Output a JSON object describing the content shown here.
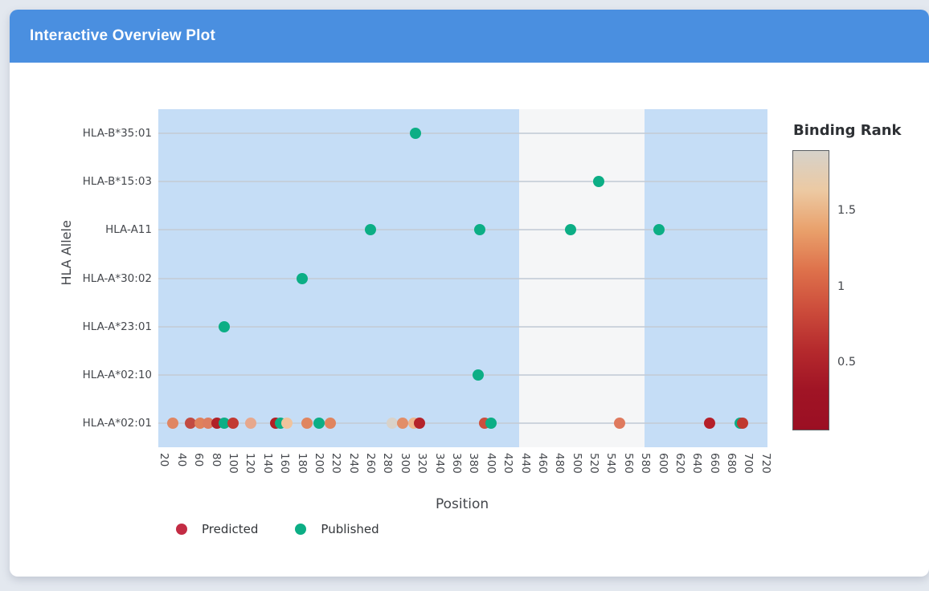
{
  "header": {
    "title": "Interactive Overview Plot",
    "background": "#4a8fe0"
  },
  "chart_data": {
    "type": "scatter",
    "xlabel": "Position",
    "ylabel": "HLA Allele",
    "x_range": [
      13,
      722
    ],
    "x_ticks": [
      20,
      40,
      60,
      80,
      100,
      120,
      140,
      160,
      180,
      200,
      220,
      240,
      260,
      280,
      300,
      320,
      340,
      360,
      380,
      400,
      420,
      440,
      460,
      480,
      500,
      520,
      540,
      560,
      580,
      600,
      620,
      640,
      660,
      680,
      700,
      720
    ],
    "y_categories": [
      "HLA-B*35:01",
      "HLA-B*15:03",
      "HLA-A11",
      "HLA-A*30:02",
      "HLA-A*23:01",
      "HLA-A*02:10",
      "HLA-A*02:01"
    ],
    "grid_color": "#c3ccd6",
    "bands": [
      {
        "x0": 13,
        "x1": 433,
        "color": "#c5ddf6"
      },
      {
        "x0": 433,
        "x1": 579,
        "color": "#f5f6f7"
      },
      {
        "x0": 579,
        "x1": 722,
        "color": "#c5ddf6"
      }
    ],
    "series": [
      {
        "name": "Predicted",
        "legend_color": "#c32c44",
        "points": [
          {
            "allele": "HLA-A*02:01",
            "position": 30,
            "binding_rank": 1.1,
            "color": "#e08663"
          },
          {
            "allele": "HLA-A*02:01",
            "position": 50,
            "binding_rank": 0.65,
            "color": "#c24b42"
          },
          {
            "allele": "HLA-A*02:01",
            "position": 62,
            "binding_rank": 1.1,
            "color": "#e0815c"
          },
          {
            "allele": "HLA-A*02:01",
            "position": 71,
            "binding_rank": 1.05,
            "color": "#dd7d60"
          },
          {
            "allele": "HLA-A*02:01",
            "position": 81,
            "binding_rank": 0.4,
            "color": "#b02127"
          },
          {
            "allele": "HLA-A*02:01",
            "position": 100,
            "binding_rank": 0.6,
            "color": "#c23a33"
          },
          {
            "allele": "HLA-A*02:01",
            "position": 121,
            "binding_rank": 1.35,
            "color": "#e7a88d"
          },
          {
            "allele": "HLA-A*02:01",
            "position": 150,
            "binding_rank": 0.4,
            "color": "#b22025"
          },
          {
            "allele": "HLA-A*02:01",
            "position": 163,
            "binding_rank": 1.5,
            "color": "#f1c39c"
          },
          {
            "allele": "HLA-A*02:01",
            "position": 186,
            "binding_rank": 1.1,
            "color": "#e0855f"
          },
          {
            "allele": "HLA-A*02:01",
            "position": 213,
            "binding_rank": 1.1,
            "color": "#e0845e"
          },
          {
            "allele": "HLA-A*02:01",
            "position": 285,
            "binding_rank": 1.9,
            "color": "#d9d2c9"
          },
          {
            "allele": "HLA-A*02:01",
            "position": 297,
            "binding_rank": 1.15,
            "color": "#e28e68"
          },
          {
            "allele": "HLA-A*02:01",
            "position": 310,
            "binding_rank": 1.4,
            "color": "#eeb68c"
          },
          {
            "allele": "HLA-A*02:01",
            "position": 317,
            "binding_rank": 0.45,
            "color": "#b4232b"
          },
          {
            "allele": "HLA-A*02:01",
            "position": 393,
            "binding_rank": 0.75,
            "color": "#cb4f3e"
          },
          {
            "allele": "HLA-A*02:01",
            "position": 550,
            "binding_rank": 1.05,
            "color": "#df7a5e"
          },
          {
            "allele": "HLA-A*02:01",
            "position": 655,
            "binding_rank": 0.45,
            "color": "#b51f29"
          },
          {
            "allele": "HLA-A*02:01",
            "position": 693,
            "binding_rank": 0.6,
            "color": "#c0392f"
          }
        ]
      },
      {
        "name": "Published",
        "legend_color": "#0cae85",
        "points": [
          {
            "allele": "HLA-B*35:01",
            "position": 312
          },
          {
            "allele": "HLA-B*15:03",
            "position": 526
          },
          {
            "allele": "HLA-A11",
            "position": 260
          },
          {
            "allele": "HLA-A11",
            "position": 387
          },
          {
            "allele": "HLA-A11",
            "position": 493
          },
          {
            "allele": "HLA-A11",
            "position": 596
          },
          {
            "allele": "HLA-A*30:02",
            "position": 180
          },
          {
            "allele": "HLA-A*23:01",
            "position": 90
          },
          {
            "allele": "HLA-A*02:10",
            "position": 385
          },
          {
            "allele": "HLA-A*02:01",
            "position": 90
          },
          {
            "allele": "HLA-A*02:01",
            "position": 155
          },
          {
            "allele": "HLA-A*02:01",
            "position": 200
          },
          {
            "allele": "HLA-A*02:01",
            "position": 400
          },
          {
            "allele": "HLA-A*02:01",
            "position": 690
          }
        ]
      }
    ],
    "legend": [
      {
        "label": "Predicted",
        "color": "#c32c44"
      },
      {
        "label": "Published",
        "color": "#0cae85"
      }
    ],
    "colorbar": {
      "title": "Binding Rank",
      "range": [
        0.05,
        1.9
      ],
      "ticks": [
        {
          "label": "1.5",
          "value": 1.5
        },
        {
          "label": "1",
          "value": 1.0
        },
        {
          "label": "0.5",
          "value": 0.5
        }
      ],
      "gradient_top_to_bottom": [
        "#d6d2ca",
        "#ecc9a2",
        "#e9a06b",
        "#de714b",
        "#cc4c3b",
        "#b52a2d",
        "#a01425",
        "#9b0f23"
      ]
    }
  }
}
